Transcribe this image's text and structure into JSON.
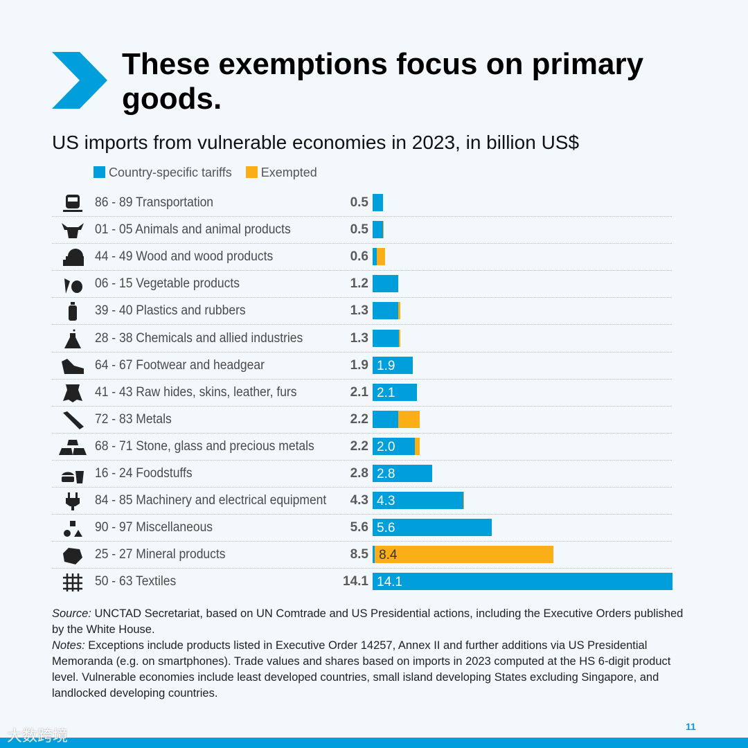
{
  "title": "These exemptions focus on primary goods.",
  "subtitle": "US imports from vulnerable economies in 2023, in billion US$",
  "colors": {
    "tariffs": "#009edb",
    "exempted": "#fbaf17",
    "accent": "#009edb"
  },
  "chart_data": {
    "type": "bar",
    "orientation": "horizontal",
    "stacked": true,
    "title": "US imports from vulnerable economies in 2023, in billion US$",
    "legend": [
      "Country-specific tariffs",
      "Exempted"
    ],
    "legend_placement": "top-left",
    "grid": false,
    "categories": [
      "86 - 89 Transportation",
      "01 - 05 Animals and animal products",
      "44 - 49 Wood and wood products",
      "06 - 15 Vegetable products",
      "39 - 40 Plastics and rubbers",
      "28 - 38 Chemicals and allied industries",
      "64 - 67 Footwear and headgear",
      "41 - 43 Raw hides, skins, leather, furs",
      "72 - 83 Metals",
      "68 - 71 Stone, glass and precious metals",
      "16 - 24 Foodstuffs",
      "84 - 85 Machinery and electrical equipment",
      "90 - 97 Miscellaneous",
      "25 - 27 Mineral products",
      "50 - 63 Textiles"
    ],
    "icons": [
      "train-icon",
      "cow-icon",
      "log-icon",
      "vegetables-icon",
      "bottle-icon",
      "flask-icon",
      "shoe-icon",
      "hide-icon",
      "metal-bars-icon",
      "gold-bars-icon",
      "food-icon",
      "plug-icon",
      "shapes-icon",
      "mineral-icon",
      "textile-icon"
    ],
    "totals": [
      "0.5",
      "0.5",
      "0.6",
      "1.2",
      "1.3",
      "1.3",
      "1.9",
      "2.1",
      "2.2",
      "2.2",
      "2.8",
      "4.3",
      "5.6",
      "8.5",
      "14.1"
    ],
    "series": [
      {
        "name": "Country-specific tariffs",
        "values": [
          0.5,
          0.5,
          0.2,
          1.2,
          1.2,
          1.25,
          1.9,
          2.1,
          1.2,
          2.0,
          2.8,
          4.25,
          5.6,
          0.1,
          14.1
        ],
        "labels": [
          "",
          "",
          "",
          "",
          "",
          "",
          "1.9",
          "2.1",
          "",
          "2.0",
          "2.8",
          "4.3",
          "5.6",
          "",
          "14.1"
        ]
      },
      {
        "name": "Exempted",
        "values": [
          0,
          0.02,
          0.4,
          0,
          0.1,
          0.05,
          0,
          0,
          1.0,
          0.2,
          0,
          0.05,
          0,
          8.4,
          0
        ],
        "labels": [
          "",
          "",
          "",
          "",
          "",
          "",
          "",
          "",
          "",
          "",
          "",
          "",
          "",
          "8.4",
          ""
        ]
      }
    ],
    "xlim": [
      0,
      14.1
    ]
  },
  "notes": {
    "source_label": "Source:",
    "source_text": " UNCTAD Secretariat, based on UN Comtrade and US Presidential actions, including the Executive Orders published by the White House.",
    "notes_label": "Notes:",
    "notes_text": " Exceptions include products listed in Executive Order 14257, Annex II and further additions via US Presidential Memoranda (e.g. on smartphones). Trade values and shares based on imports in 2023 computed at the HS 6-digit product level. Vulnerable economies include least developed countries, small island developing States excluding Singapore, and landlocked developing countries."
  },
  "page_number": "11",
  "watermark": "大数跨境"
}
